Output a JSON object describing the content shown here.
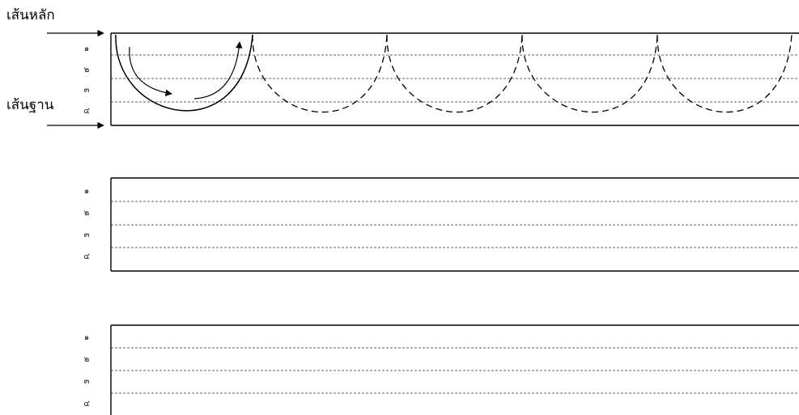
{
  "labels": {
    "main_line": "เส้นหลัก",
    "base_line": "เส้นฐาน"
  },
  "row_numbers": [
    "๑",
    "๒",
    "๓",
    "๔"
  ],
  "practice_blocks": [
    {
      "name": "example",
      "has_demo_strokes": true
    },
    {
      "name": "practice-1",
      "has_demo_strokes": false
    },
    {
      "name": "practice-2",
      "has_demo_strokes": false
    }
  ],
  "colors": {
    "ink": "#000000",
    "guide": "#333333"
  }
}
